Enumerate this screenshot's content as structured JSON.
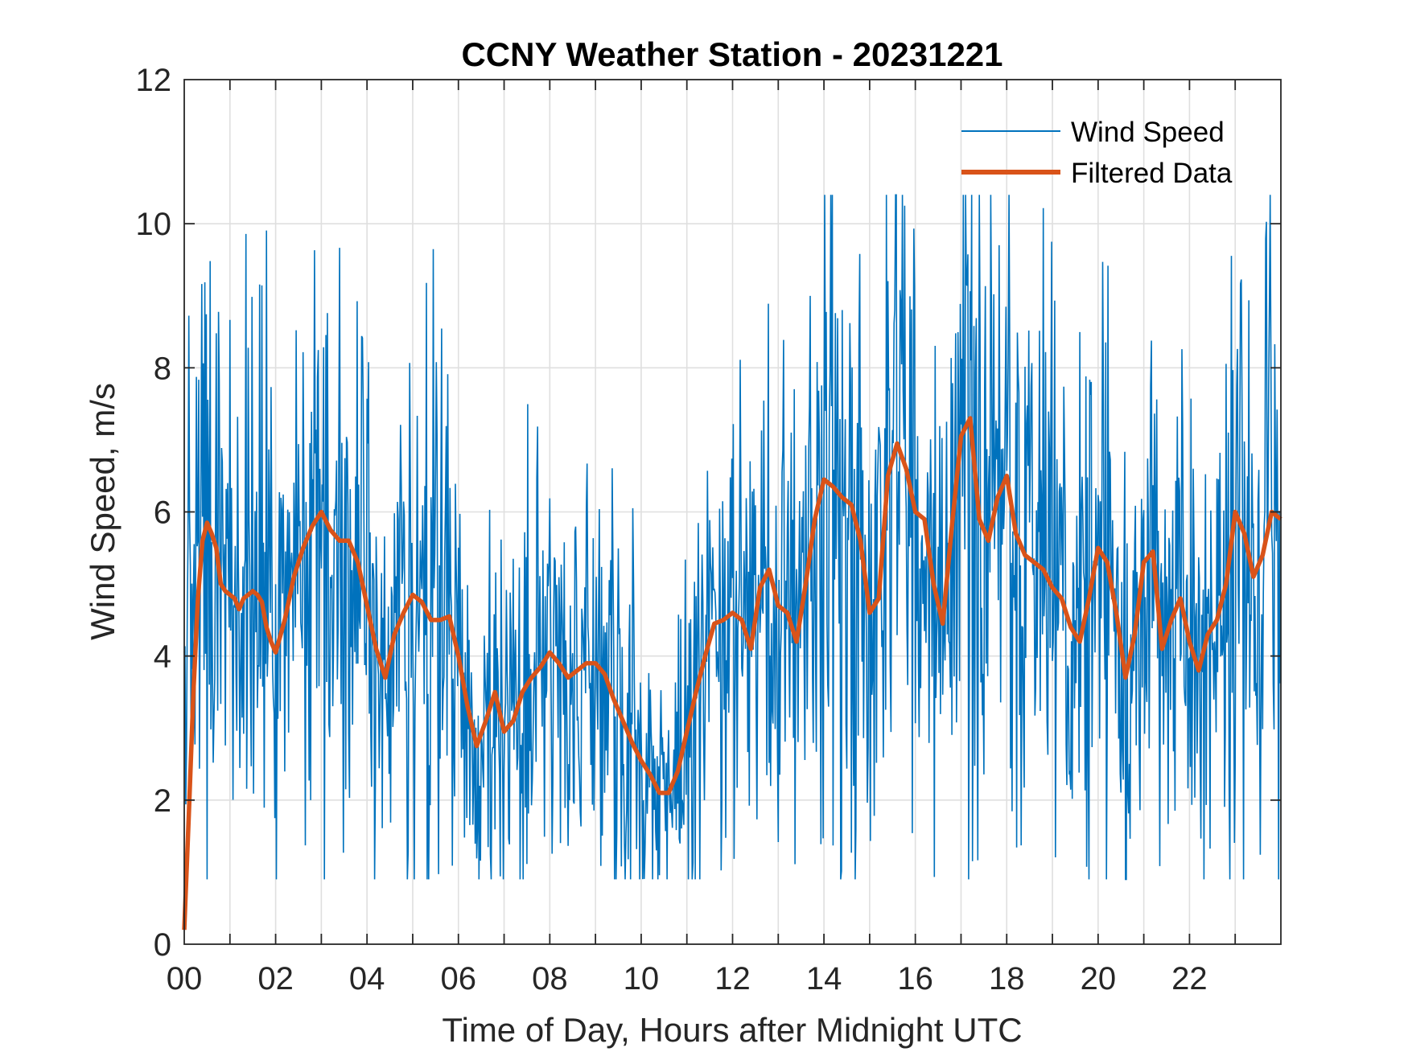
{
  "chart_data": {
    "type": "line",
    "title": "CCNY Weather Station - 20231221",
    "xlabel": "Time of Day, Hours after Midnight UTC",
    "ylabel": "Wind Speed, m/s",
    "xlim": [
      0,
      24
    ],
    "ylim": [
      0,
      12
    ],
    "xticks": [
      0,
      2,
      4,
      6,
      8,
      10,
      12,
      14,
      16,
      18,
      20,
      22
    ],
    "xtick_labels": [
      "00",
      "02",
      "04",
      "06",
      "08",
      "10",
      "12",
      "14",
      "16",
      "18",
      "20",
      "22"
    ],
    "yticks": [
      0,
      2,
      4,
      6,
      8,
      10,
      12
    ],
    "ytick_labels": [
      "0",
      "2",
      "4",
      "6",
      "8",
      "10",
      "12"
    ],
    "grid": true,
    "legend_position": "top-right",
    "colors": {
      "wind_speed": "#0072BD",
      "filtered": "#D95319",
      "grid": "#dfdfdf",
      "axis": "#262626"
    },
    "filtered_points": {
      "x": [
        0.0,
        0.1,
        0.2,
        0.3,
        0.4,
        0.5,
        0.6,
        0.7,
        0.8,
        0.9,
        1.0,
        1.1,
        1.2,
        1.3,
        1.4,
        1.5,
        1.6,
        1.7,
        1.8,
        1.9,
        2.0,
        2.2,
        2.4,
        2.6,
        2.8,
        3.0,
        3.2,
        3.4,
        3.6,
        3.8,
        4.0,
        4.2,
        4.4,
        4.6,
        4.8,
        5.0,
        5.2,
        5.4,
        5.6,
        5.8,
        6.0,
        6.2,
        6.4,
        6.6,
        6.8,
        7.0,
        7.2,
        7.4,
        7.6,
        7.8,
        8.0,
        8.2,
        8.4,
        8.6,
        8.8,
        9.0,
        9.2,
        9.4,
        9.6,
        9.8,
        10.0,
        10.2,
        10.4,
        10.6,
        10.8,
        11.0,
        11.2,
        11.4,
        11.6,
        11.8,
        12.0,
        12.2,
        12.4,
        12.6,
        12.8,
        13.0,
        13.2,
        13.4,
        13.6,
        13.8,
        14.0,
        14.2,
        14.4,
        14.6,
        14.8,
        15.0,
        15.2,
        15.4,
        15.6,
        15.8,
        16.0,
        16.2,
        16.4,
        16.6,
        16.8,
        17.0,
        17.2,
        17.4,
        17.6,
        17.8,
        18.0,
        18.2,
        18.4,
        18.6,
        18.8,
        19.0,
        19.2,
        19.4,
        19.6,
        19.8,
        20.0,
        20.2,
        20.4,
        20.6,
        20.8,
        21.0,
        21.2,
        21.4,
        21.6,
        21.8,
        22.0,
        22.2,
        22.4,
        22.6,
        22.8,
        23.0,
        23.2,
        23.4,
        23.6,
        23.8,
        24.0
      ],
      "y": [
        0.2,
        1.8,
        3.5,
        4.8,
        5.6,
        5.85,
        5.7,
        5.5,
        5.0,
        4.9,
        4.85,
        4.8,
        4.65,
        4.8,
        4.85,
        4.9,
        4.85,
        4.75,
        4.4,
        4.2,
        4.05,
        4.5,
        5.1,
        5.5,
        5.8,
        6.0,
        5.75,
        5.6,
        5.6,
        5.3,
        4.7,
        4.1,
        3.7,
        4.3,
        4.6,
        4.85,
        4.75,
        4.5,
        4.5,
        4.55,
        4.0,
        3.3,
        2.75,
        3.1,
        3.5,
        2.95,
        3.1,
        3.5,
        3.7,
        3.85,
        4.05,
        3.9,
        3.7,
        3.8,
        3.9,
        3.9,
        3.75,
        3.4,
        3.1,
        2.8,
        2.55,
        2.35,
        2.1,
        2.1,
        2.4,
        2.95,
        3.5,
        4.0,
        4.45,
        4.5,
        4.6,
        4.5,
        4.1,
        4.95,
        5.2,
        4.7,
        4.6,
        4.2,
        5.0,
        5.9,
        6.45,
        6.35,
        6.2,
        6.1,
        5.6,
        4.6,
        4.8,
        6.5,
        6.95,
        6.6,
        6.0,
        5.9,
        5.0,
        4.45,
        5.8,
        7.05,
        7.3,
        5.9,
        5.6,
        6.2,
        6.5,
        5.7,
        5.4,
        5.3,
        5.2,
        4.95,
        4.8,
        4.4,
        4.2,
        4.8,
        5.5,
        5.3,
        4.6,
        3.7,
        4.3,
        5.3,
        5.45,
        4.1,
        4.5,
        4.8,
        4.2,
        3.8,
        4.3,
        4.5,
        5.0,
        6.0,
        5.7,
        5.1,
        5.4,
        6.0,
        5.9
      ]
    },
    "legend": [
      {
        "label": "Wind Speed",
        "color": "#0072BD"
      },
      {
        "label": "Filtered Data",
        "color": "#D95319"
      }
    ]
  }
}
